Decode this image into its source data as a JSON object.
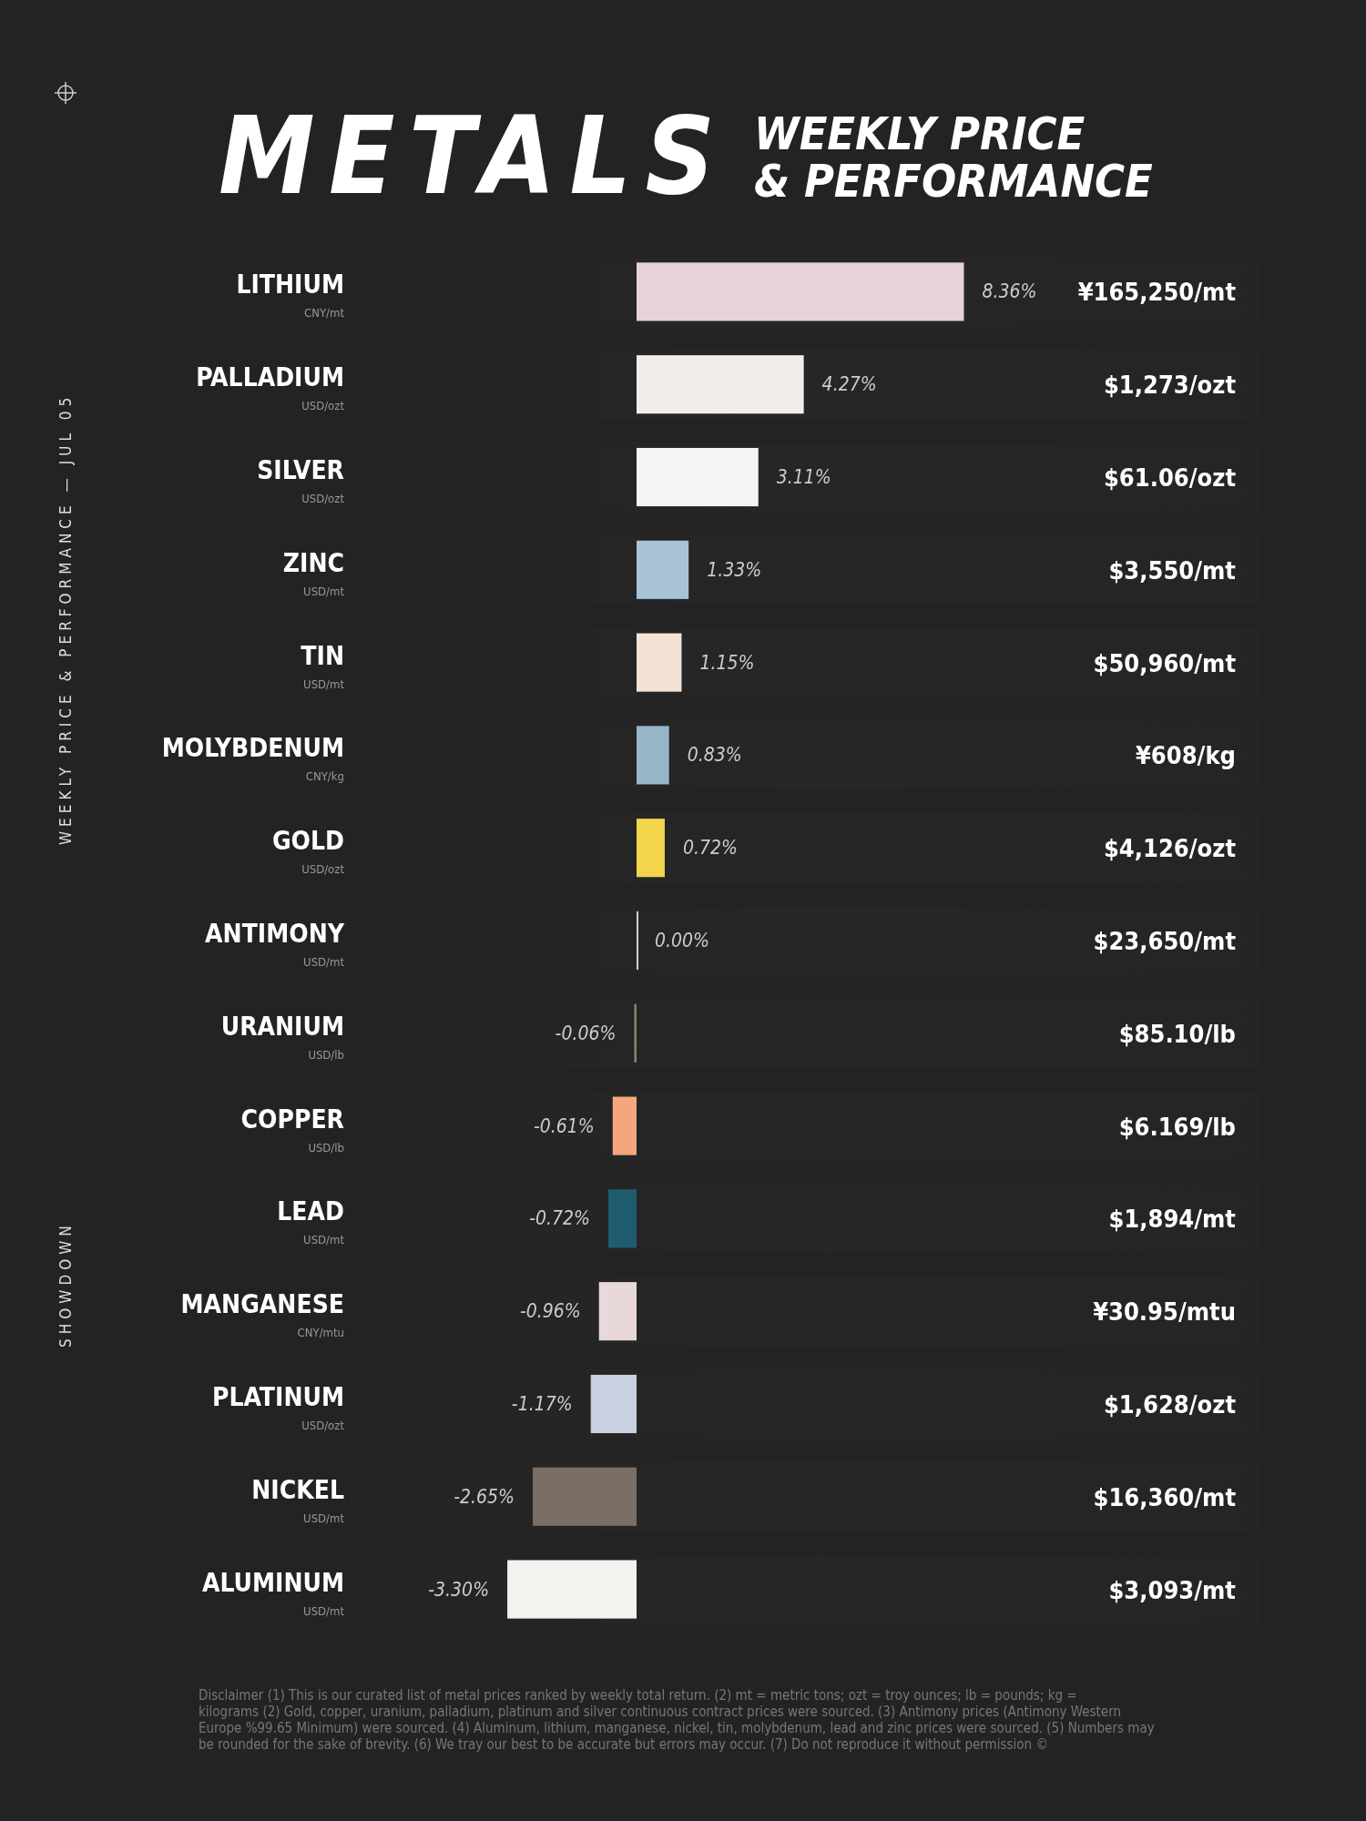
{
  "chart_data": {
    "type": "bar",
    "orientation": "horizontal",
    "title": "METALS",
    "subtitle": "WEEKLY PRICE\n& PERFORMANCE",
    "categories": [
      "LITHIUM$_{CNY/mt}$",
      "PALLADIUM$_{USD/ozt}$",
      "SILVER$_{USD/ozt}$",
      "ZINC$_{USD/mt}$",
      "TIN$_{USD/mt}$",
      "MOLYBDENUM$_{CNY/kg}$",
      "GOLD$_{USD/ozt}$",
      "ANTIMONY$_{USD/mt}$",
      "URANIUM$_{USD/lb}$",
      "COPPER$_{USD/lb}$",
      "LEAD$_{USD/mt}$",
      "MANGANESE$_{CNY/mtu}$",
      "PLATINUM$_{USD/ozt}$",
      "NICKEL$_{USD/mt}$",
      "ALUMINUM$_{USD/mt}$"
    ],
    "values": [
      8.36,
      4.27,
      3.11,
      1.33,
      1.15,
      0.83,
      0.72,
      0.0,
      -0.06,
      -0.61,
      -0.72,
      -0.96,
      -1.17,
      -2.65,
      -3.3
    ],
    "colors": [
      "#e6d3d8",
      "#f2efea",
      "#f4f4f4",
      "#a9c3d6",
      "#f3e3d6",
      "#98b6c8",
      "#f2d54c",
      "#d0d0c8",
      "#7a8a60",
      "#f4a77c",
      "#1f5c70",
      "#e8d8da",
      "#c9d0e0",
      "#7a6e66",
      "#f4f2ee"
    ],
    "value_labels": [
      "8.36%",
      "4.27%",
      "3.11%",
      "1.33%",
      "1.15%",
      "0.83%",
      "0.72%",
      "0.00%",
      "-0.06%",
      "-0.61%",
      "-0.72%",
      "-0.96%",
      "-1.17%",
      "-2.65%",
      "-3.30%"
    ],
    "annotations": [
      "¥165,250/mt",
      "$1,273/ozt",
      "$61.06/ozt",
      "$3,550/mt",
      "$50,960/mt",
      "¥608/kg",
      "$4,126/ozt",
      "$23,650/mt",
      "$85.10/lb",
      "$6.169/lb",
      "$1,894/mt",
      "¥30.95/mtu",
      "$1,628/ozt",
      "$16,360/mt",
      "$3,093/mt",
      "WEEKLY PRICE & PERFORMANCE — JUL 05",
      "SHOWDOWN",
      "Disclaimer (1) This is our curated list of metal prices ranked by weekly total return. (2) mt = metric tons; ozt = troy ounces; lb = pounds; kg = kilograms (2) Gold, copper, uranium, palladium, platinum and silver continuous contract prices were sourced. (3) Antimony prices (Antimony Western Europe %99.65 Minimum) were sourced. (4) Aluminum, lithium, manganese, nickel, tin, molybdenum, lead and zinc prices were sourced. (5) Numbers may be rounded for the sake of brevity. (6) We tray our best to be accurate but errors may occur. (7) Do not reproduce it without permission ©"
    ]
  }
}
